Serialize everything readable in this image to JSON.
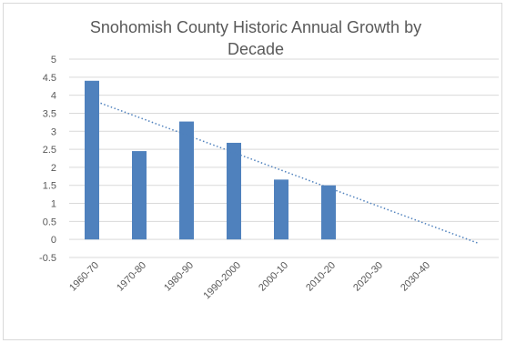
{
  "chart_data": {
    "type": "bar",
    "title_lines": [
      "Snohomish County Historic Annual Growth by",
      "Decade"
    ],
    "xlabel": "",
    "ylabel": "",
    "categories": [
      "1960-70",
      "1970-80",
      "1980-90",
      "1990-2000",
      "2000-10",
      "2010-20",
      "2020-30",
      "2030-40"
    ],
    "values": [
      4.4,
      2.45,
      3.27,
      2.68,
      1.66,
      1.5,
      null,
      null
    ],
    "ylim": [
      -0.5,
      5
    ],
    "yticks": [
      "5",
      "4.5",
      "4",
      "3.5",
      "3",
      "2.5",
      "2",
      "1.5",
      "1",
      "0.5",
      "0",
      "-0.5"
    ],
    "grid": true,
    "legend": "none",
    "trendline": {
      "type": "linear",
      "style": "dotted",
      "from": {
        "category": "1960-70",
        "value": 3.85
      },
      "to": {
        "category": "2030-40",
        "value": -0.1
      }
    },
    "colors": {
      "bar": "#4f81bd",
      "trendline": "#4f81bd",
      "grid": "#d9d9d9",
      "text": "#595959"
    }
  }
}
